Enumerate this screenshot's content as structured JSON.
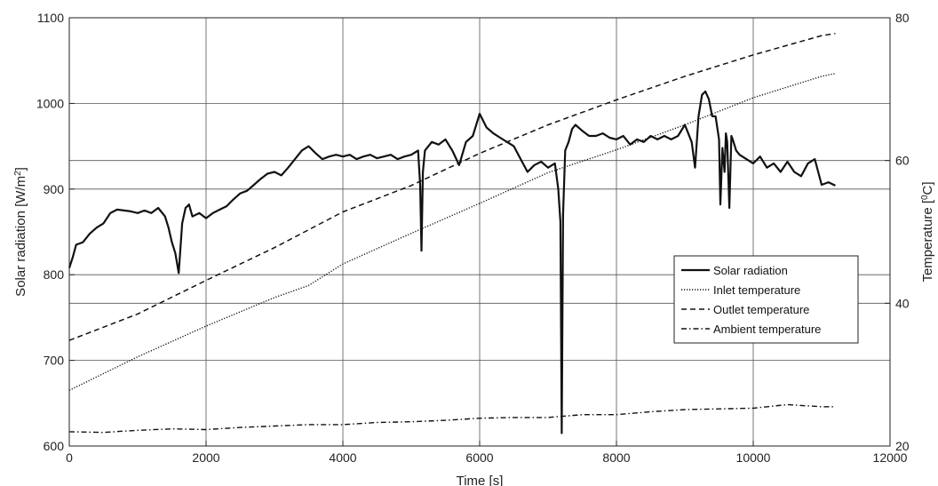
{
  "chart_data": {
    "type": "line",
    "title": "",
    "xlabel": "Time [s]",
    "ylabel_left": {
      "text": "Solar radiation [W/m",
      "sup": "2",
      "tail": "]"
    },
    "ylabel_right": {
      "text": "Temperature [",
      "sup": "0",
      "tail": "C]"
    },
    "xlim": [
      0,
      12000
    ],
    "ylim_left": [
      600,
      1100
    ],
    "ylim_right": [
      20,
      80
    ],
    "x_ticks": [
      "0",
      "2000",
      "4000",
      "6000",
      "8000",
      "10000",
      "12000"
    ],
    "y_ticks_left": [
      "600",
      "700",
      "800",
      "900",
      "1000",
      "1100"
    ],
    "y_ticks_right": [
      "20",
      "40",
      "60",
      "80"
    ],
    "grid": true,
    "legend_position": "right",
    "series": [
      {
        "name": "Solar radiation",
        "axis": "left",
        "style": "solid",
        "x": [
          0,
          50,
          100,
          200,
          300,
          400,
          500,
          600,
          700,
          800,
          900,
          1000,
          1100,
          1200,
          1300,
          1400,
          1450,
          1500,
          1550,
          1600,
          1650,
          1700,
          1750,
          1800,
          1900,
          2000,
          2100,
          2200,
          2300,
          2400,
          2500,
          2600,
          2700,
          2800,
          2900,
          3000,
          3100,
          3200,
          3300,
          3400,
          3500,
          3600,
          3700,
          3800,
          3900,
          4000,
          4100,
          4200,
          4300,
          4400,
          4500,
          4600,
          4700,
          4800,
          4900,
          5000,
          5100,
          5130,
          5150,
          5170,
          5200,
          5300,
          5400,
          5500,
          5600,
          5700,
          5800,
          5900,
          6000,
          6100,
          6200,
          6300,
          6400,
          6500,
          6600,
          6700,
          6800,
          6900,
          7000,
          7100,
          7150,
          7180,
          7200,
          7220,
          7250,
          7300,
          7350,
          7400,
          7500,
          7600,
          7700,
          7800,
          7900,
          8000,
          8100,
          8200,
          8300,
          8400,
          8500,
          8600,
          8700,
          8800,
          8900,
          9000,
          9100,
          9150,
          9200,
          9250,
          9300,
          9350,
          9400,
          9450,
          9500,
          9520,
          9550,
          9580,
          9600,
          9620,
          9650,
          9680,
          9700,
          9750,
          9800,
          9900,
          10000,
          10100,
          10200,
          10300,
          10400,
          10500,
          10600,
          10700,
          10800,
          10900,
          11000,
          11100,
          11200
        ],
        "values": [
          808,
          820,
          835,
          838,
          848,
          855,
          860,
          872,
          876,
          875,
          874,
          872,
          875,
          872,
          878,
          868,
          855,
          838,
          825,
          802,
          860,
          878,
          882,
          868,
          872,
          866,
          872,
          876,
          880,
          888,
          895,
          898,
          905,
          912,
          918,
          920,
          916,
          925,
          935,
          945,
          950,
          942,
          935,
          938,
          940,
          938,
          940,
          935,
          938,
          940,
          936,
          938,
          940,
          935,
          938,
          940,
          945,
          905,
          828,
          920,
          945,
          955,
          952,
          958,
          945,
          928,
          955,
          962,
          988,
          972,
          965,
          960,
          955,
          950,
          935,
          920,
          928,
          932,
          925,
          930,
          900,
          862,
          615,
          870,
          945,
          955,
          970,
          975,
          968,
          962,
          962,
          965,
          960,
          958,
          962,
          952,
          958,
          955,
          962,
          958,
          962,
          958,
          962,
          975,
          955,
          925,
          985,
          1010,
          1014,
          1005,
          985,
          985,
          958,
          882,
          948,
          920,
          965,
          955,
          878,
          962,
          958,
          945,
          940,
          935,
          930,
          938,
          925,
          930,
          920,
          932,
          920,
          915,
          930,
          935,
          905,
          908,
          904
        ]
      },
      {
        "name": "Inlet temperature",
        "axis": "right",
        "style": "dotted",
        "x": [
          0,
          1000,
          2000,
          3000,
          3500,
          4000,
          5000,
          6000,
          7000,
          8000,
          9000,
          10000,
          11000,
          11200
        ],
        "values": [
          27.8,
          32.5,
          36.8,
          40.8,
          42.5,
          45.5,
          49.8,
          54.0,
          58.3,
          61.5,
          65.0,
          68.8,
          71.8,
          72.2
        ]
      },
      {
        "name": "Outlet temperature",
        "axis": "right",
        "style": "dashed",
        "x": [
          0,
          1000,
          2000,
          3000,
          4000,
          5000,
          6000,
          7000,
          8000,
          9000,
          10000,
          11000,
          11200
        ],
        "values": [
          34.8,
          38.5,
          43.2,
          47.8,
          52.8,
          56.5,
          61.0,
          65.0,
          68.5,
          71.8,
          74.8,
          77.5,
          77.8
        ]
      },
      {
        "name": "Ambient temperature",
        "axis": "right",
        "style": "dashdot",
        "x": [
          0,
          500,
          1000,
          1500,
          2000,
          2500,
          3000,
          3500,
          4000,
          4500,
          5000,
          5500,
          6000,
          6500,
          7000,
          7500,
          8000,
          8500,
          9000,
          9500,
          10000,
          10500,
          11000,
          11200
        ],
        "values": [
          22.0,
          21.9,
          22.2,
          22.4,
          22.3,
          22.6,
          22.8,
          23.0,
          23.0,
          23.3,
          23.4,
          23.6,
          23.9,
          24.0,
          24.0,
          24.4,
          24.4,
          24.8,
          25.1,
          25.2,
          25.3,
          25.8,
          25.5,
          25.5
        ]
      }
    ]
  }
}
